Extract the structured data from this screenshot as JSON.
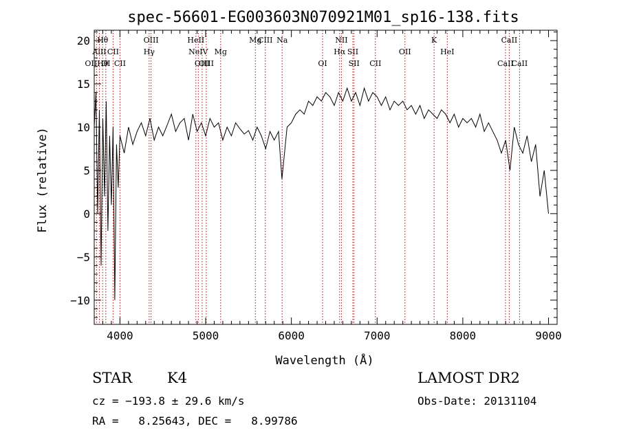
{
  "chart_data": {
    "type": "line",
    "title": "spec-56601-EG003603N070921M01_sp16-138.fits",
    "xlabel": "Wavelength (Å)",
    "ylabel": "Flux (relative)",
    "xlim": [
      3700,
      9100
    ],
    "ylim": [
      -12.8,
      21.2
    ],
    "xticks": [
      4000,
      5000,
      6000,
      7000,
      8000,
      9000
    ],
    "yticks": [
      -10,
      -5,
      0,
      5,
      10,
      15,
      20
    ],
    "grid": false,
    "line_color": "#000000",
    "marker_color": "#8b1a1a",
    "series": [
      {
        "x": [
          3700,
          3720,
          3740,
          3760,
          3780,
          3800,
          3820,
          3840,
          3860,
          3880,
          3900,
          3920,
          3940,
          3960,
          3980,
          4000,
          4050,
          4100,
          4150,
          4200,
          4250,
          4300,
          4350,
          4400,
          4450,
          4500,
          4550,
          4600,
          4650,
          4700,
          4750,
          4800,
          4850,
          4900,
          4950,
          5000,
          5050,
          5100,
          5150,
          5200,
          5250,
          5300,
          5350,
          5400,
          5450,
          5500,
          5550,
          5600,
          5650,
          5700,
          5750,
          5800,
          5850,
          5890,
          5950,
          6000,
          6050,
          6100,
          6150,
          6200,
          6250,
          6300,
          6350,
          6400,
          6450,
          6500,
          6550,
          6600,
          6650,
          6700,
          6750,
          6800,
          6850,
          6900,
          6950,
          7000,
          7050,
          7100,
          7150,
          7200,
          7250,
          7300,
          7350,
          7400,
          7450,
          7500,
          7550,
          7600,
          7650,
          7700,
          7750,
          7800,
          7850,
          7900,
          7950,
          8000,
          8050,
          8100,
          8150,
          8200,
          8250,
          8300,
          8350,
          8400,
          8450,
          8500,
          8550,
          8600,
          8650,
          8700,
          8750,
          8800,
          8850,
          8900,
          8950,
          9000
        ],
        "y": [
          10,
          14,
          0,
          12,
          -6,
          11,
          2,
          13,
          -2,
          9,
          1,
          10,
          -10,
          8,
          3,
          9,
          7,
          10,
          8,
          9.5,
          10.5,
          9,
          11,
          8.5,
          10,
          9,
          10.2,
          11.5,
          9.5,
          10.5,
          11,
          8.5,
          11.5,
          9.5,
          10.5,
          9,
          11,
          10,
          10.5,
          8.5,
          10,
          9,
          10.5,
          9.8,
          9.2,
          9.6,
          8.5,
          10,
          9,
          7.5,
          9.5,
          8.5,
          9.5,
          4,
          10,
          10.5,
          11.5,
          12,
          11.5,
          13,
          12.5,
          13.5,
          13,
          14,
          13.5,
          12.5,
          14,
          13,
          14.5,
          13,
          14,
          12.5,
          14.5,
          13,
          14,
          13.5,
          12.5,
          13.5,
          12,
          13,
          12.5,
          13,
          12,
          12.5,
          11.5,
          12.5,
          11,
          12,
          11.5,
          11,
          12,
          11.5,
          10.5,
          11.5,
          10,
          11,
          10.5,
          11,
          10,
          11.5,
          9.5,
          10.5,
          9.5,
          8.5,
          7,
          8.5,
          5,
          10,
          8,
          7,
          9,
          6,
          8,
          2,
          5,
          0
        ]
      }
    ],
    "lines": [
      {
        "label": "Hθ",
        "x": 3798,
        "row": 1
      },
      {
        "label": "AlII",
        "x": 3760,
        "row": 2
      },
      {
        "label": "CII",
        "x": 3920,
        "row": 2
      },
      {
        "label": "OIIHθ",
        "x": 3727,
        "row": 3
      },
      {
        "label": "OI",
        "x": 3835,
        "row": 3
      },
      {
        "label": "CII",
        "x": 4000,
        "row": 3
      },
      {
        "label": "OIII",
        "x": 4363,
        "row": 1
      },
      {
        "label": "Hγ",
        "x": 4341,
        "row": 2
      },
      {
        "label": "HeII",
        "x": 4886,
        "row": 1
      },
      {
        "label": "NeIV",
        "x": 4914,
        "row": 2
      },
      {
        "label": "OIII",
        "x": 4959,
        "row": 3
      },
      {
        "label": "OIII",
        "x": 5007,
        "row": 3
      },
      {
        "label": "Mg",
        "x": 5175,
        "row": 2
      },
      {
        "label": "Mg",
        "x": 5580,
        "row": 1
      },
      {
        "label": "CIII",
        "x": 5696,
        "row": 1
      },
      {
        "label": "Na",
        "x": 5892,
        "row": 1
      },
      {
        "label": "OI",
        "x": 6364,
        "row": 3
      },
      {
        "label": "NII",
        "x": 6584,
        "row": 1
      },
      {
        "label": "Hα",
        "x": 6563,
        "row": 2
      },
      {
        "label": "SII",
        "x": 6717,
        "row": 2
      },
      {
        "label": "SII",
        "x": 6731,
        "row": 3
      },
      {
        "label": "CII",
        "x": 6980,
        "row": 3
      },
      {
        "label": "OII",
        "x": 7325,
        "row": 2
      },
      {
        "label": "K",
        "x": 7665,
        "row": 1
      },
      {
        "label": "HeI",
        "x": 7819,
        "row": 2
      },
      {
        "label": "CaII",
        "x": 8542,
        "row": 1
      },
      {
        "label": "CaII",
        "x": 8498,
        "row": 3
      },
      {
        "label": "CaII",
        "x": 8662,
        "row": 3
      }
    ]
  },
  "info": {
    "obj_class": "STAR",
    "obj_subclass": "K4",
    "survey": "LAMOST DR2",
    "cz": "cz = −193.8 ± 29.6 km/s",
    "obs_date": "Obs-Date: 20131104",
    "radec": "RA =   8.25643, DEC =   8.99786"
  }
}
